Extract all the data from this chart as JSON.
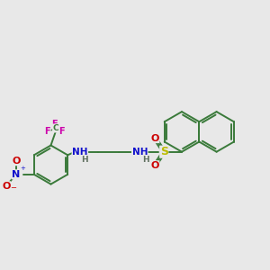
{
  "background_color": "#e8e8e8",
  "bond_color": "#3a7a3a",
  "bond_width": 1.4,
  "atom_colors": {
    "N": "#1010cc",
    "O": "#cc0000",
    "S": "#bbbb00",
    "F": "#cc00aa",
    "C": "#3a7a3a",
    "H": "#607060",
    "NH": "#1010cc",
    "NO2_N": "#1010cc",
    "NO2_O": "#cc0000"
  },
  "figsize": [
    3.0,
    3.0
  ],
  "dpi": 100
}
